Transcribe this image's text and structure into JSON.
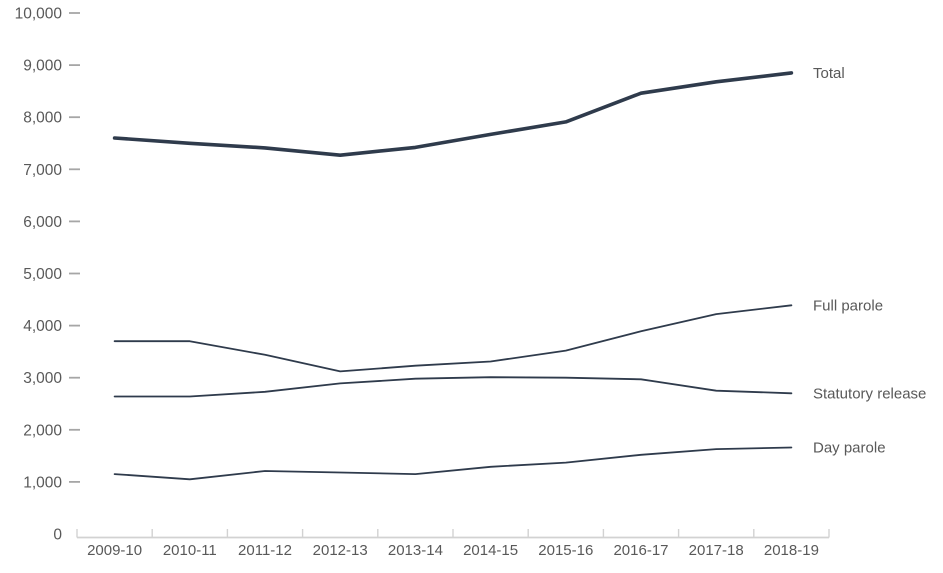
{
  "chart_data": {
    "type": "line",
    "title": "",
    "xlabel": "",
    "ylabel": "",
    "categories": [
      "2009-10",
      "2010-11",
      "2011-12",
      "2012-13",
      "2013-14",
      "2014-15",
      "2015-16",
      "2016-17",
      "2017-18",
      "2018-19"
    ],
    "series": [
      {
        "name": "Total",
        "values": [
          7600,
          7500,
          7410,
          7270,
          7420,
          7670,
          7910,
          8460,
          8680,
          8850
        ],
        "emphasis": true
      },
      {
        "name": "Full parole",
        "values": [
          3700,
          3700,
          3440,
          3120,
          3230,
          3310,
          3520,
          3890,
          4220,
          4390
        ],
        "emphasis": false
      },
      {
        "name": "Statutory release",
        "values": [
          2640,
          2640,
          2730,
          2890,
          2980,
          3010,
          3000,
          2970,
          2750,
          2700
        ],
        "emphasis": false
      },
      {
        "name": "Day parole",
        "values": [
          1150,
          1050,
          1210,
          1180,
          1150,
          1290,
          1370,
          1520,
          1630,
          1660
        ],
        "emphasis": false
      }
    ],
    "ylim": [
      0,
      10000
    ],
    "ytick_step": 1000,
    "ytick_labels": [
      "0",
      "1,000",
      "2,000",
      "3,000",
      "4,000",
      "5,000",
      "6,000",
      "7,000",
      "8,000",
      "9,000",
      "10,000"
    ],
    "grid": false,
    "legend_position": "right of line ends, direct labels"
  },
  "colors": {
    "line": "#2F3B4C",
    "label_text": "#595959",
    "axis_line": "#d2d2d2",
    "ytick_dash": "#a6a6a6"
  }
}
